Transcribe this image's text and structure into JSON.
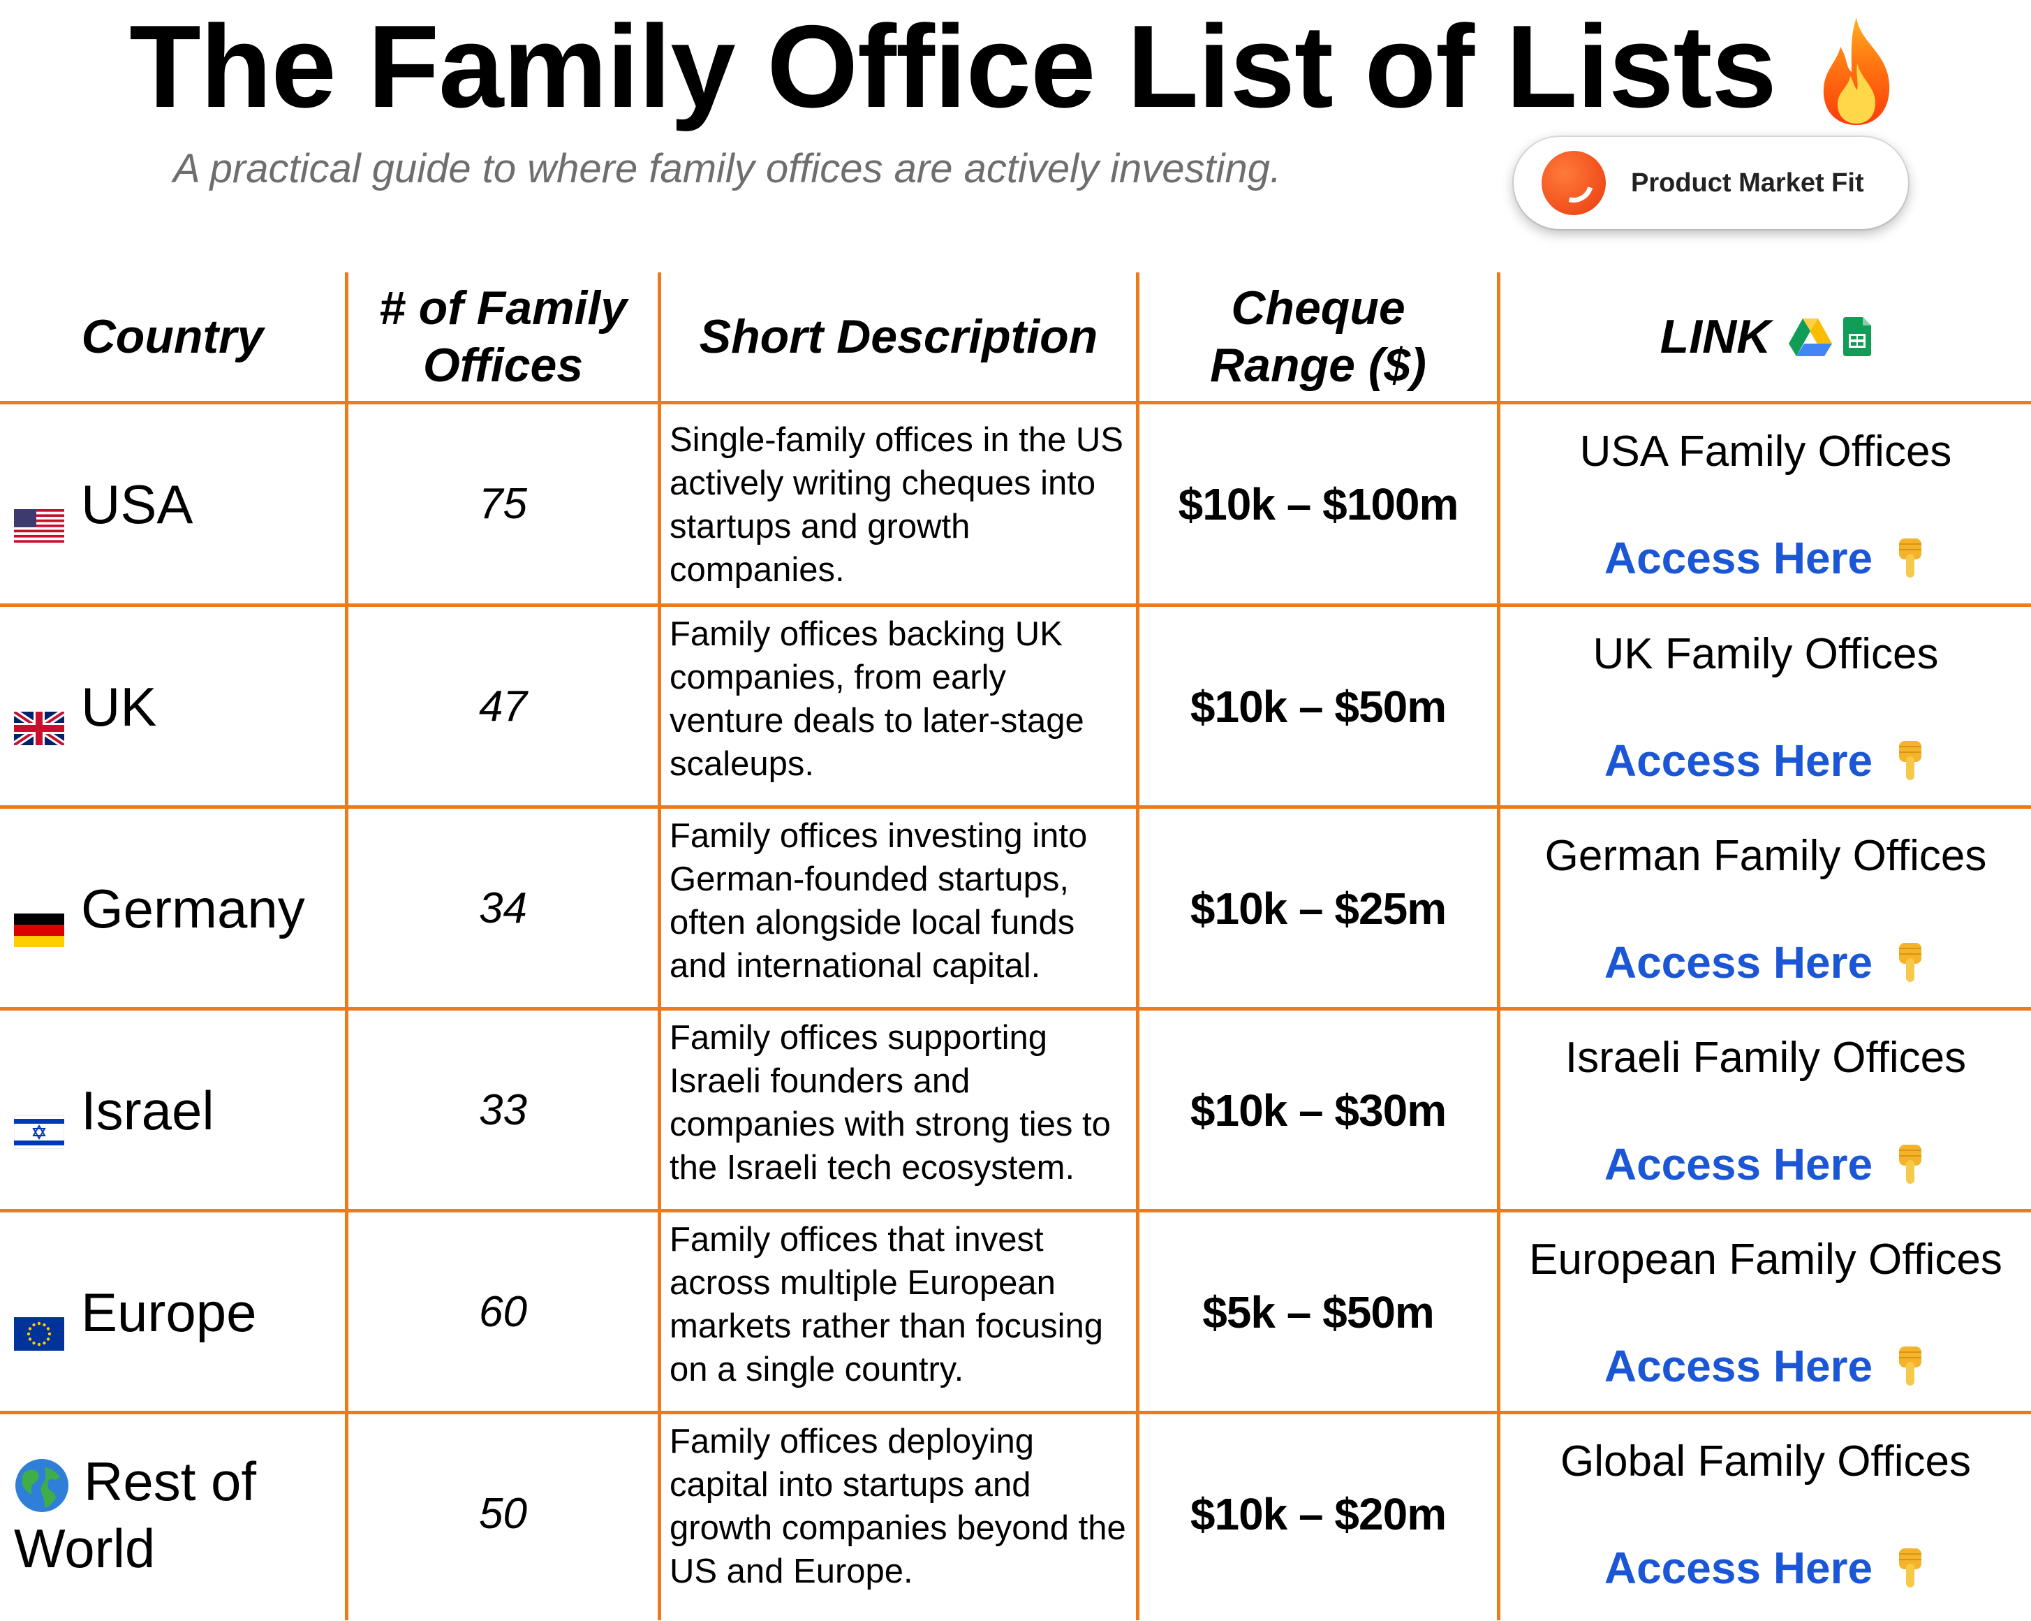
{
  "header": {
    "title": "The Family Office List of Lists",
    "title_icon": "fire-icon",
    "subtitle": "A practical guide to where family offices are actively investing.",
    "badge_label": "Product Market Fit"
  },
  "table": {
    "columns": {
      "country": "Country",
      "count": "# of Family Offices",
      "description": "Short Description",
      "cheque": "Cheque Range ($)",
      "link": "LINK"
    },
    "link_header_icons": [
      "google-drive-icon",
      "google-sheets-icon"
    ],
    "rows": [
      {
        "flag": "us-flag-icon",
        "country": "USA",
        "count": "75",
        "description": "Single-family offices in the US actively writing cheques into startups and growth companies.",
        "cheque": "$10k – $100m",
        "link_title": "USA Family Offices",
        "link_label": "Access Here"
      },
      {
        "flag": "uk-flag-icon",
        "country": "UK",
        "count": "47",
        "description": "Family offices backing UK companies, from early venture deals to later-stage scaleups.",
        "cheque": "$10k – $50m",
        "link_title": "UK Family Offices",
        "link_label": "Access Here"
      },
      {
        "flag": "germany-flag-icon",
        "country": "Germany",
        "count": "34",
        "description": "Family offices investing into German-founded startups, often alongside local funds and international capital.",
        "cheque": "$10k – $25m",
        "link_title": "German Family Offices",
        "link_label": "Access Here"
      },
      {
        "flag": "israel-flag-icon",
        "country": "Israel",
        "count": "33",
        "description": "Family offices supporting Israeli founders and companies with strong ties to the Israeli tech ecosystem.",
        "cheque": "$10k – $30m",
        "link_title": "Israeli Family Offices",
        "link_label": "Access Here"
      },
      {
        "flag": "eu-flag-icon",
        "country": "Europe",
        "count": "60",
        "description": "Family offices that invest across multiple European markets rather than focusing on a single country.",
        "cheque": "$5k – $50m",
        "link_title": "European Family Offices",
        "link_label": "Access Here"
      },
      {
        "flag": "globe-icon",
        "country": "Rest of World",
        "count": "50",
        "description": "Family offices deploying capital into startups and growth companies beyond the US and Europe.",
        "cheque": "$10k – $20m",
        "link_title": "Global Family Offices",
        "link_label": "Access Here"
      }
    ],
    "link_icon": "pointing-down-hand-icon"
  },
  "colors": {
    "grid": "#f07a1a",
    "link": "#1a56d6",
    "subtitle": "#6e6e6e"
  }
}
